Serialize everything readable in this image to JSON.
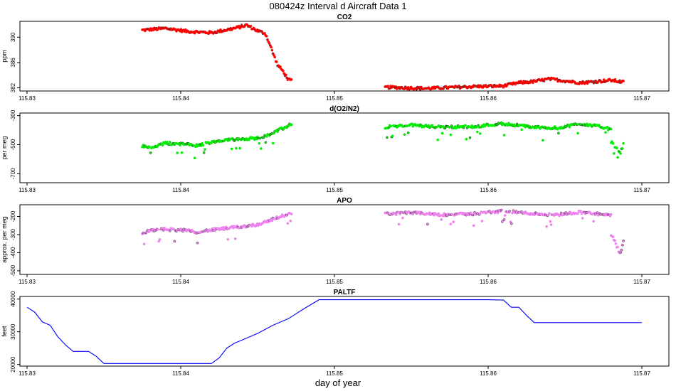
{
  "title": "080424z   Interval d Aircraft Data 1",
  "xlabel": "day of year",
  "chart_data": [
    {
      "type": "scatter",
      "title": "CO2",
      "ylabel": "ppm",
      "xlim": [
        115.83,
        115.87
      ],
      "ylim": [
        381.5,
        392.5
      ],
      "xticks": [
        115.83,
        115.84,
        115.85,
        115.86,
        115.87
      ],
      "xtick_labels": [
        "115.83",
        "115.84",
        "115.85",
        "115.86",
        "115.87"
      ],
      "yticks": [
        382,
        386,
        390
      ],
      "ytick_labels": [
        "382",
        "386",
        "390"
      ],
      "color": "#ff0000",
      "series": [
        {
          "segments": [
            {
              "x": [
                115.8375,
                115.839,
                115.8405,
                115.842,
                115.8435,
                115.8443,
                115.845,
                115.8455,
                115.8458,
                115.846,
                115.8463,
                115.8466,
                115.847,
                115.8472
              ],
              "y": [
                391.1,
                391.4,
                390.9,
                390.7,
                391.4,
                391.9,
                391.0,
                390.6,
                388.8,
                387.5,
                385.6,
                384.8,
                383.3,
                383.1
              ]
            },
            {
              "x": [
                115.8533,
                115.856,
                115.859,
                115.861,
                115.862,
                115.863,
                115.864,
                115.865,
                115.866,
                115.867,
                115.868,
                115.8688
              ],
              "y": [
                382.1,
                381.9,
                382.2,
                382.3,
                382.8,
                383.0,
                383.4,
                383.1,
                382.8,
                383.0,
                383.2,
                382.9
              ]
            }
          ]
        }
      ]
    },
    {
      "type": "scatter",
      "title": "d(O2/N2)",
      "ylabel": "per meg",
      "xlim": [
        115.83,
        115.87
      ],
      "ylim": [
        -762,
        -282
      ],
      "xticks": [
        115.83,
        115.84,
        115.85,
        115.86,
        115.87
      ],
      "xtick_labels": [
        "115.83",
        "115.84",
        "115.85",
        "115.86",
        "115.87"
      ],
      "yticks": [
        -700,
        -500,
        -300
      ],
      "ytick_labels": [
        "-700",
        "-500",
        "-300"
      ],
      "color": "#00ee00",
      "series": [
        {
          "segments": [
            {
              "x": [
                115.8375,
                115.838,
                115.839,
                115.84,
                115.841,
                115.842,
                115.843,
                115.844,
                115.845,
                115.846,
                115.8472
              ],
              "y": [
                -510,
                -520,
                -490,
                -495,
                -505,
                -485,
                -470,
                -460,
                -455,
                -420,
                -360
              ]
            },
            {
              "x": [
                115.8533,
                115.855,
                115.857,
                115.859,
                115.861,
                115.863,
                115.8645,
                115.866,
                115.8675,
                115.868
              ],
              "y": [
                -380,
                -365,
                -380,
                -375,
                -355,
                -380,
                -385,
                -355,
                -380,
                -395
              ]
            },
            {
              "x": [
                115.868,
                115.8683,
                115.8686,
                115.8688
              ],
              "y": [
                -480,
                -520,
                -560,
                -500
              ]
            }
          ]
        }
      ]
    },
    {
      "type": "scatter",
      "title": "APO",
      "ylabel": "approx. per meg",
      "xlim": [
        115.83,
        115.87
      ],
      "ylim": [
        -520,
        -135
      ],
      "xticks": [
        115.83,
        115.84,
        115.85,
        115.86,
        115.87
      ],
      "xtick_labels": [
        "115.83",
        "115.84",
        "115.85",
        "115.86",
        "115.87"
      ],
      "yticks": [
        -500,
        -400,
        -300,
        -200
      ],
      "ytick_labels": [
        "-500",
        "-400",
        "-300",
        "-200"
      ],
      "color": "#ee82ee",
      "series": [
        {
          "segments": [
            {
              "x": [
                115.8375,
                115.838,
                115.839,
                115.84,
                115.841,
                115.842,
                115.843,
                115.844,
                115.845,
                115.846,
                115.8472
              ],
              "y": [
                -290,
                -280,
                -270,
                -275,
                -285,
                -275,
                -265,
                -255,
                -245,
                -215,
                -180
              ]
            },
            {
              "x": [
                115.8533,
                115.855,
                115.857,
                115.859,
                115.861,
                115.863,
                115.8645,
                115.866,
                115.8675,
                115.868
              ],
              "y": [
                -185,
                -180,
                -190,
                -185,
                -170,
                -185,
                -190,
                -175,
                -190,
                -195
              ]
            },
            {
              "x": [
                115.868,
                115.8683,
                115.8686,
                115.8688
              ],
              "y": [
                -300,
                -350,
                -410,
                -330
              ]
            }
          ]
        }
      ]
    },
    {
      "type": "line",
      "title": "PALTF",
      "ylabel": "feet",
      "xlim": [
        115.83,
        115.87
      ],
      "ylim": [
        19500,
        40800
      ],
      "xticks": [
        115.83,
        115.84,
        115.85,
        115.86,
        115.87
      ],
      "xtick_labels": [
        "115.83",
        "115.84",
        "115.85",
        "115.86",
        "115.87"
      ],
      "yticks": [
        20000,
        30000,
        40000
      ],
      "ytick_labels": [
        "20000",
        "30000",
        "40000"
      ],
      "color": "#0000ff",
      "series": [
        {
          "x": [
            115.83,
            115.8305,
            115.831,
            115.8315,
            115.832,
            115.8325,
            115.833,
            115.834,
            115.8345,
            115.835,
            115.838,
            115.84,
            115.8415,
            115.842,
            115.8425,
            115.843,
            115.8435,
            115.844,
            115.8445,
            115.845,
            115.846,
            115.847,
            115.848,
            115.849,
            115.85,
            115.855,
            115.86,
            115.861,
            115.8615,
            115.862,
            115.8625,
            115.863,
            115.865,
            115.87
          ],
          "y": [
            37500,
            36000,
            33000,
            32000,
            28500,
            26000,
            24000,
            24000,
            22500,
            20300,
            20300,
            20300,
            20300,
            20300,
            22000,
            25000,
            26500,
            27500,
            28500,
            29500,
            32000,
            34000,
            37000,
            39800,
            39800,
            39800,
            39800,
            39700,
            37500,
            37500,
            35000,
            32800,
            32800,
            32800
          ]
        }
      ]
    }
  ]
}
